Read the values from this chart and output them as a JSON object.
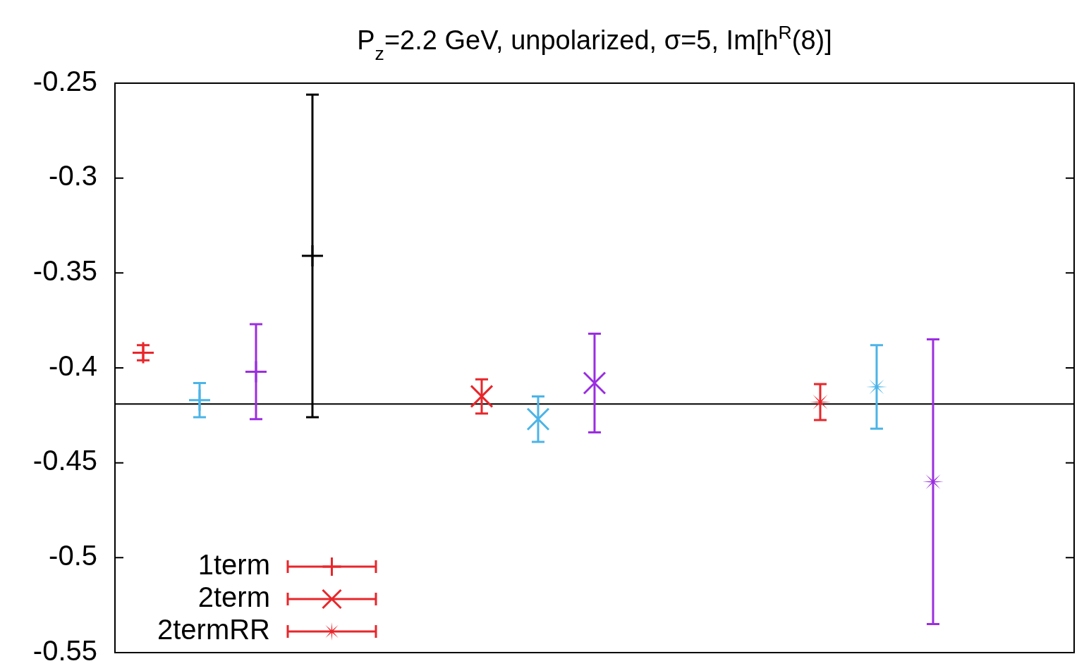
{
  "chart_data": {
    "type": "scatter",
    "title": "P$_{z}$=2.2 GeV, unpolarized, σ=5, Im[h$^{R}$(8)]",
    "categories": [
      null,
      null,
      null,
      null,
      null,
      null,
      null,
      null,
      null,
      null,
      null,
      null,
      null,
      null,
      null,
      null,
      null
    ],
    "ylim": [
      -0.55,
      -0.25
    ],
    "yticks": [
      -0.25,
      -0.3,
      -0.35,
      -0.4,
      -0.45,
      -0.5,
      -0.55
    ],
    "tick_labels": "y",
    "legend": "bottom left",
    "line_style": "solid",
    "ref_lines": [
      {
        "axis": "y",
        "value": -0.419,
        "color": "#000000"
      }
    ],
    "series": [
      {
        "name": "1term",
        "color": "#e8262b",
        "values": [
          -0.392,
          null,
          null,
          null,
          null,
          null,
          null,
          null,
          null,
          null,
          null,
          null,
          null,
          null,
          null,
          null,
          null
        ],
        "errors": [
          0.004,
          null,
          null,
          null,
          null,
          null,
          null,
          null,
          null,
          null,
          null,
          null,
          null,
          null,
          null,
          null,
          null
        ]
      },
      {
        "color": "#4cb4e7",
        "values": [
          null,
          -0.417,
          null,
          null,
          null,
          null,
          null,
          null,
          null,
          null,
          null,
          null,
          null,
          null,
          null,
          null,
          null
        ],
        "errors": [
          null,
          0.009,
          null,
          null,
          null,
          null,
          null,
          null,
          null,
          null,
          null,
          null,
          null,
          null,
          null,
          null,
          null
        ]
      },
      {
        "color": "#9b2ee0",
        "values": [
          null,
          null,
          -0.402,
          null,
          null,
          null,
          null,
          null,
          null,
          null,
          null,
          null,
          null,
          null,
          null,
          null,
          null
        ],
        "errors": [
          null,
          null,
          0.025,
          null,
          null,
          null,
          null,
          null,
          null,
          null,
          null,
          null,
          null,
          null,
          null,
          null,
          null
        ]
      },
      {
        "color": "#000000",
        "values": [
          null,
          null,
          null,
          -0.341,
          null,
          null,
          null,
          null,
          null,
          null,
          null,
          null,
          null,
          null,
          null,
          null,
          null
        ],
        "errors": [
          null,
          null,
          null,
          0.085,
          null,
          null,
          null,
          null,
          null,
          null,
          null,
          null,
          null,
          null,
          null,
          null,
          null
        ]
      },
      {
        "name": "2term",
        "color": "#e8262b",
        "marker": "cross",
        "values": [
          null,
          null,
          null,
          null,
          null,
          null,
          -0.415,
          null,
          null,
          null,
          null,
          null,
          null,
          null,
          null,
          null,
          null
        ],
        "errors": [
          null,
          null,
          null,
          null,
          null,
          null,
          0.009,
          null,
          null,
          null,
          null,
          null,
          null,
          null,
          null,
          null,
          null
        ]
      },
      {
        "color": "#4cb4e7",
        "marker": "cross",
        "values": [
          null,
          null,
          null,
          null,
          null,
          null,
          null,
          -0.427,
          null,
          null,
          null,
          null,
          null,
          null,
          null,
          null,
          null
        ],
        "errors": [
          null,
          null,
          null,
          null,
          null,
          null,
          null,
          0.012,
          null,
          null,
          null,
          null,
          null,
          null,
          null,
          null,
          null
        ]
      },
      {
        "color": "#9b2ee0",
        "marker": "cross",
        "values": [
          null,
          null,
          null,
          null,
          null,
          null,
          null,
          null,
          -0.408,
          null,
          null,
          null,
          null,
          null,
          null,
          null,
          null
        ],
        "errors": [
          null,
          null,
          null,
          null,
          null,
          null,
          null,
          null,
          0.026,
          null,
          null,
          null,
          null,
          null,
          null,
          null,
          null
        ]
      },
      {
        "name": "2termRR",
        "color": "#e8262b",
        "marker": "star",
        "values": [
          null,
          null,
          null,
          null,
          null,
          null,
          null,
          null,
          null,
          null,
          null,
          null,
          -0.418,
          null,
          null,
          null,
          null
        ],
        "errors": [
          null,
          null,
          null,
          null,
          null,
          null,
          null,
          null,
          null,
          null,
          null,
          null,
          0.0095,
          null,
          null,
          null,
          null
        ]
      },
      {
        "color": "#4cb4e7",
        "marker": "star",
        "values": [
          null,
          null,
          null,
          null,
          null,
          null,
          null,
          null,
          null,
          null,
          null,
          null,
          null,
          -0.41,
          null,
          null,
          null
        ],
        "errors": [
          null,
          null,
          null,
          null,
          null,
          null,
          null,
          null,
          null,
          null,
          null,
          null,
          null,
          0.022,
          null,
          null,
          null
        ]
      },
      {
        "color": "#9b2ee0",
        "marker": "star",
        "values": [
          null,
          null,
          null,
          null,
          null,
          null,
          null,
          null,
          null,
          null,
          null,
          null,
          null,
          null,
          -0.46,
          null,
          null
        ],
        "errors": [
          null,
          null,
          null,
          null,
          null,
          null,
          null,
          null,
          null,
          null,
          null,
          null,
          null,
          null,
          0.075,
          null,
          null
        ]
      }
    ]
  }
}
